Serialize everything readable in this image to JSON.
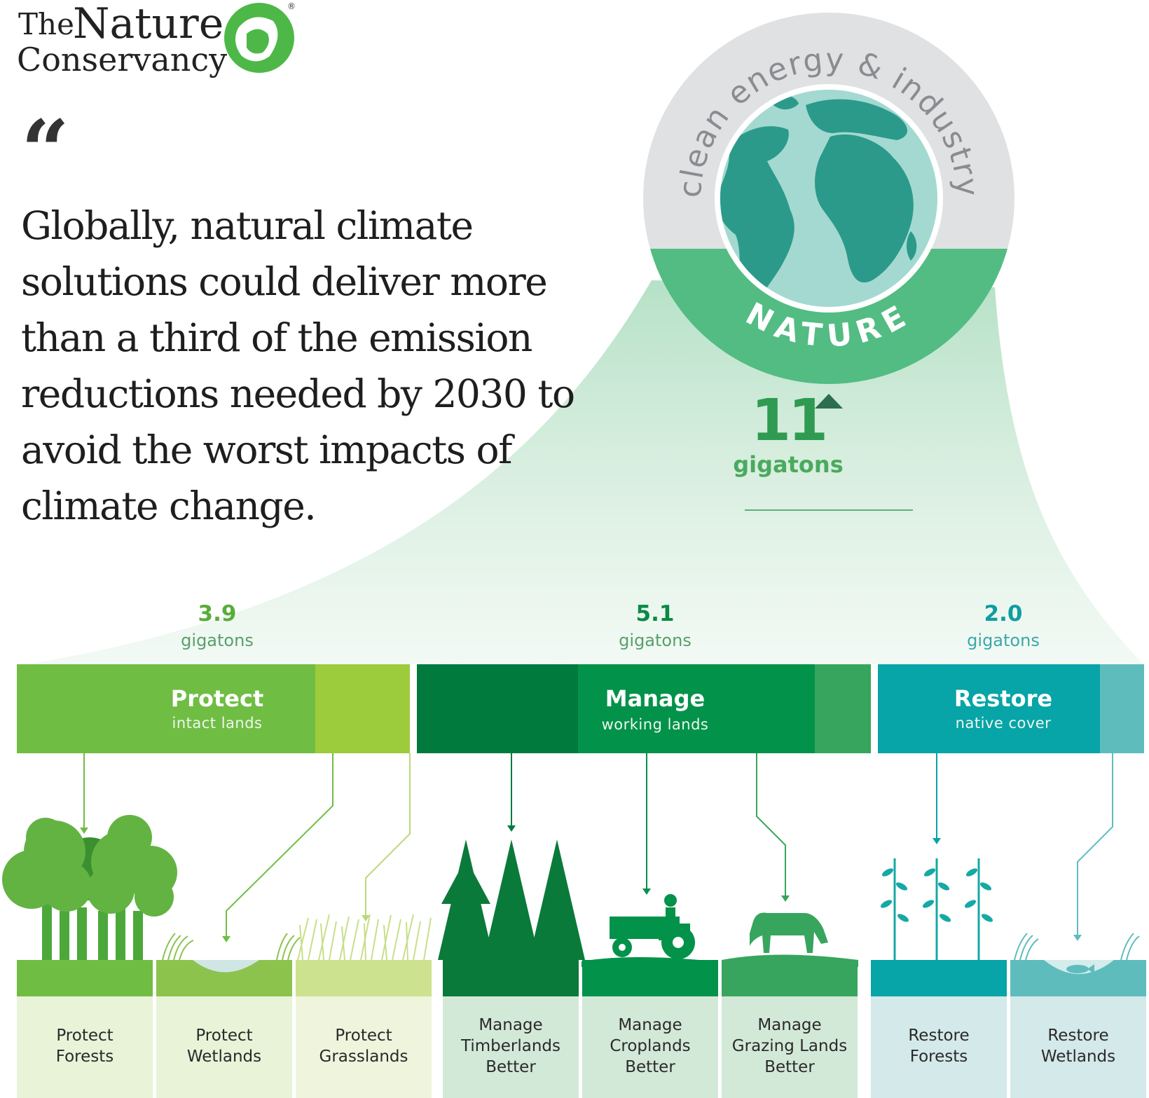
{
  "logo": {
    "the": "The",
    "nature": "Nature",
    "conservancy": "Conservancy",
    "registered": "®"
  },
  "quote_mark": "“",
  "headline_lines": [
    "Globally, natural climate",
    "solutions could deliver more",
    "than a third of the emission",
    "reductions needed by 2030 to",
    "avoid the worst impacts of",
    "climate change."
  ],
  "globe": {
    "outer_label": "clean energy & industry",
    "inner_label": "NATURE",
    "total_value": "11",
    "total_unit": "gigatons"
  },
  "categories": [
    {
      "value": "3.9",
      "unit": "gigatons",
      "title": "Protect",
      "subtitle": "intact lands",
      "color": "#70bd44"
    },
    {
      "value": "5.1",
      "unit": "gigatons",
      "title": "Manage",
      "subtitle": "working lands",
      "color": "#02924a"
    },
    {
      "value": "2.0",
      "unit": "gigatons",
      "title": "Restore",
      "subtitle": "native cover",
      "color": "#07a4a8"
    }
  ],
  "cards": [
    {
      "lines": [
        "Protect",
        "Forests"
      ]
    },
    {
      "lines": [
        "Protect",
        "Wetlands"
      ]
    },
    {
      "lines": [
        "Protect",
        "Grasslands"
      ]
    },
    {
      "lines": [
        "Manage",
        "Timberlands",
        "Better"
      ]
    },
    {
      "lines": [
        "Manage",
        "Croplands",
        "Better"
      ]
    },
    {
      "lines": [
        "Manage",
        "Grazing Lands",
        "Better"
      ]
    },
    {
      "lines": [
        "Restore",
        "Forests"
      ]
    },
    {
      "lines": [
        "Restore",
        "Wetlands"
      ]
    }
  ],
  "colors": {
    "light_green": "#70bd44",
    "lime": "#9ccb3b",
    "dark_green": "#007a3d",
    "mid_green": "#02924a",
    "teal": "#07a4a8",
    "light_teal": "#5fbcbd",
    "grey_ring": "#e0e1e3",
    "nature_band": "#52bc83",
    "ocean": "#a3d9d0",
    "land": "#2b9a8a"
  }
}
